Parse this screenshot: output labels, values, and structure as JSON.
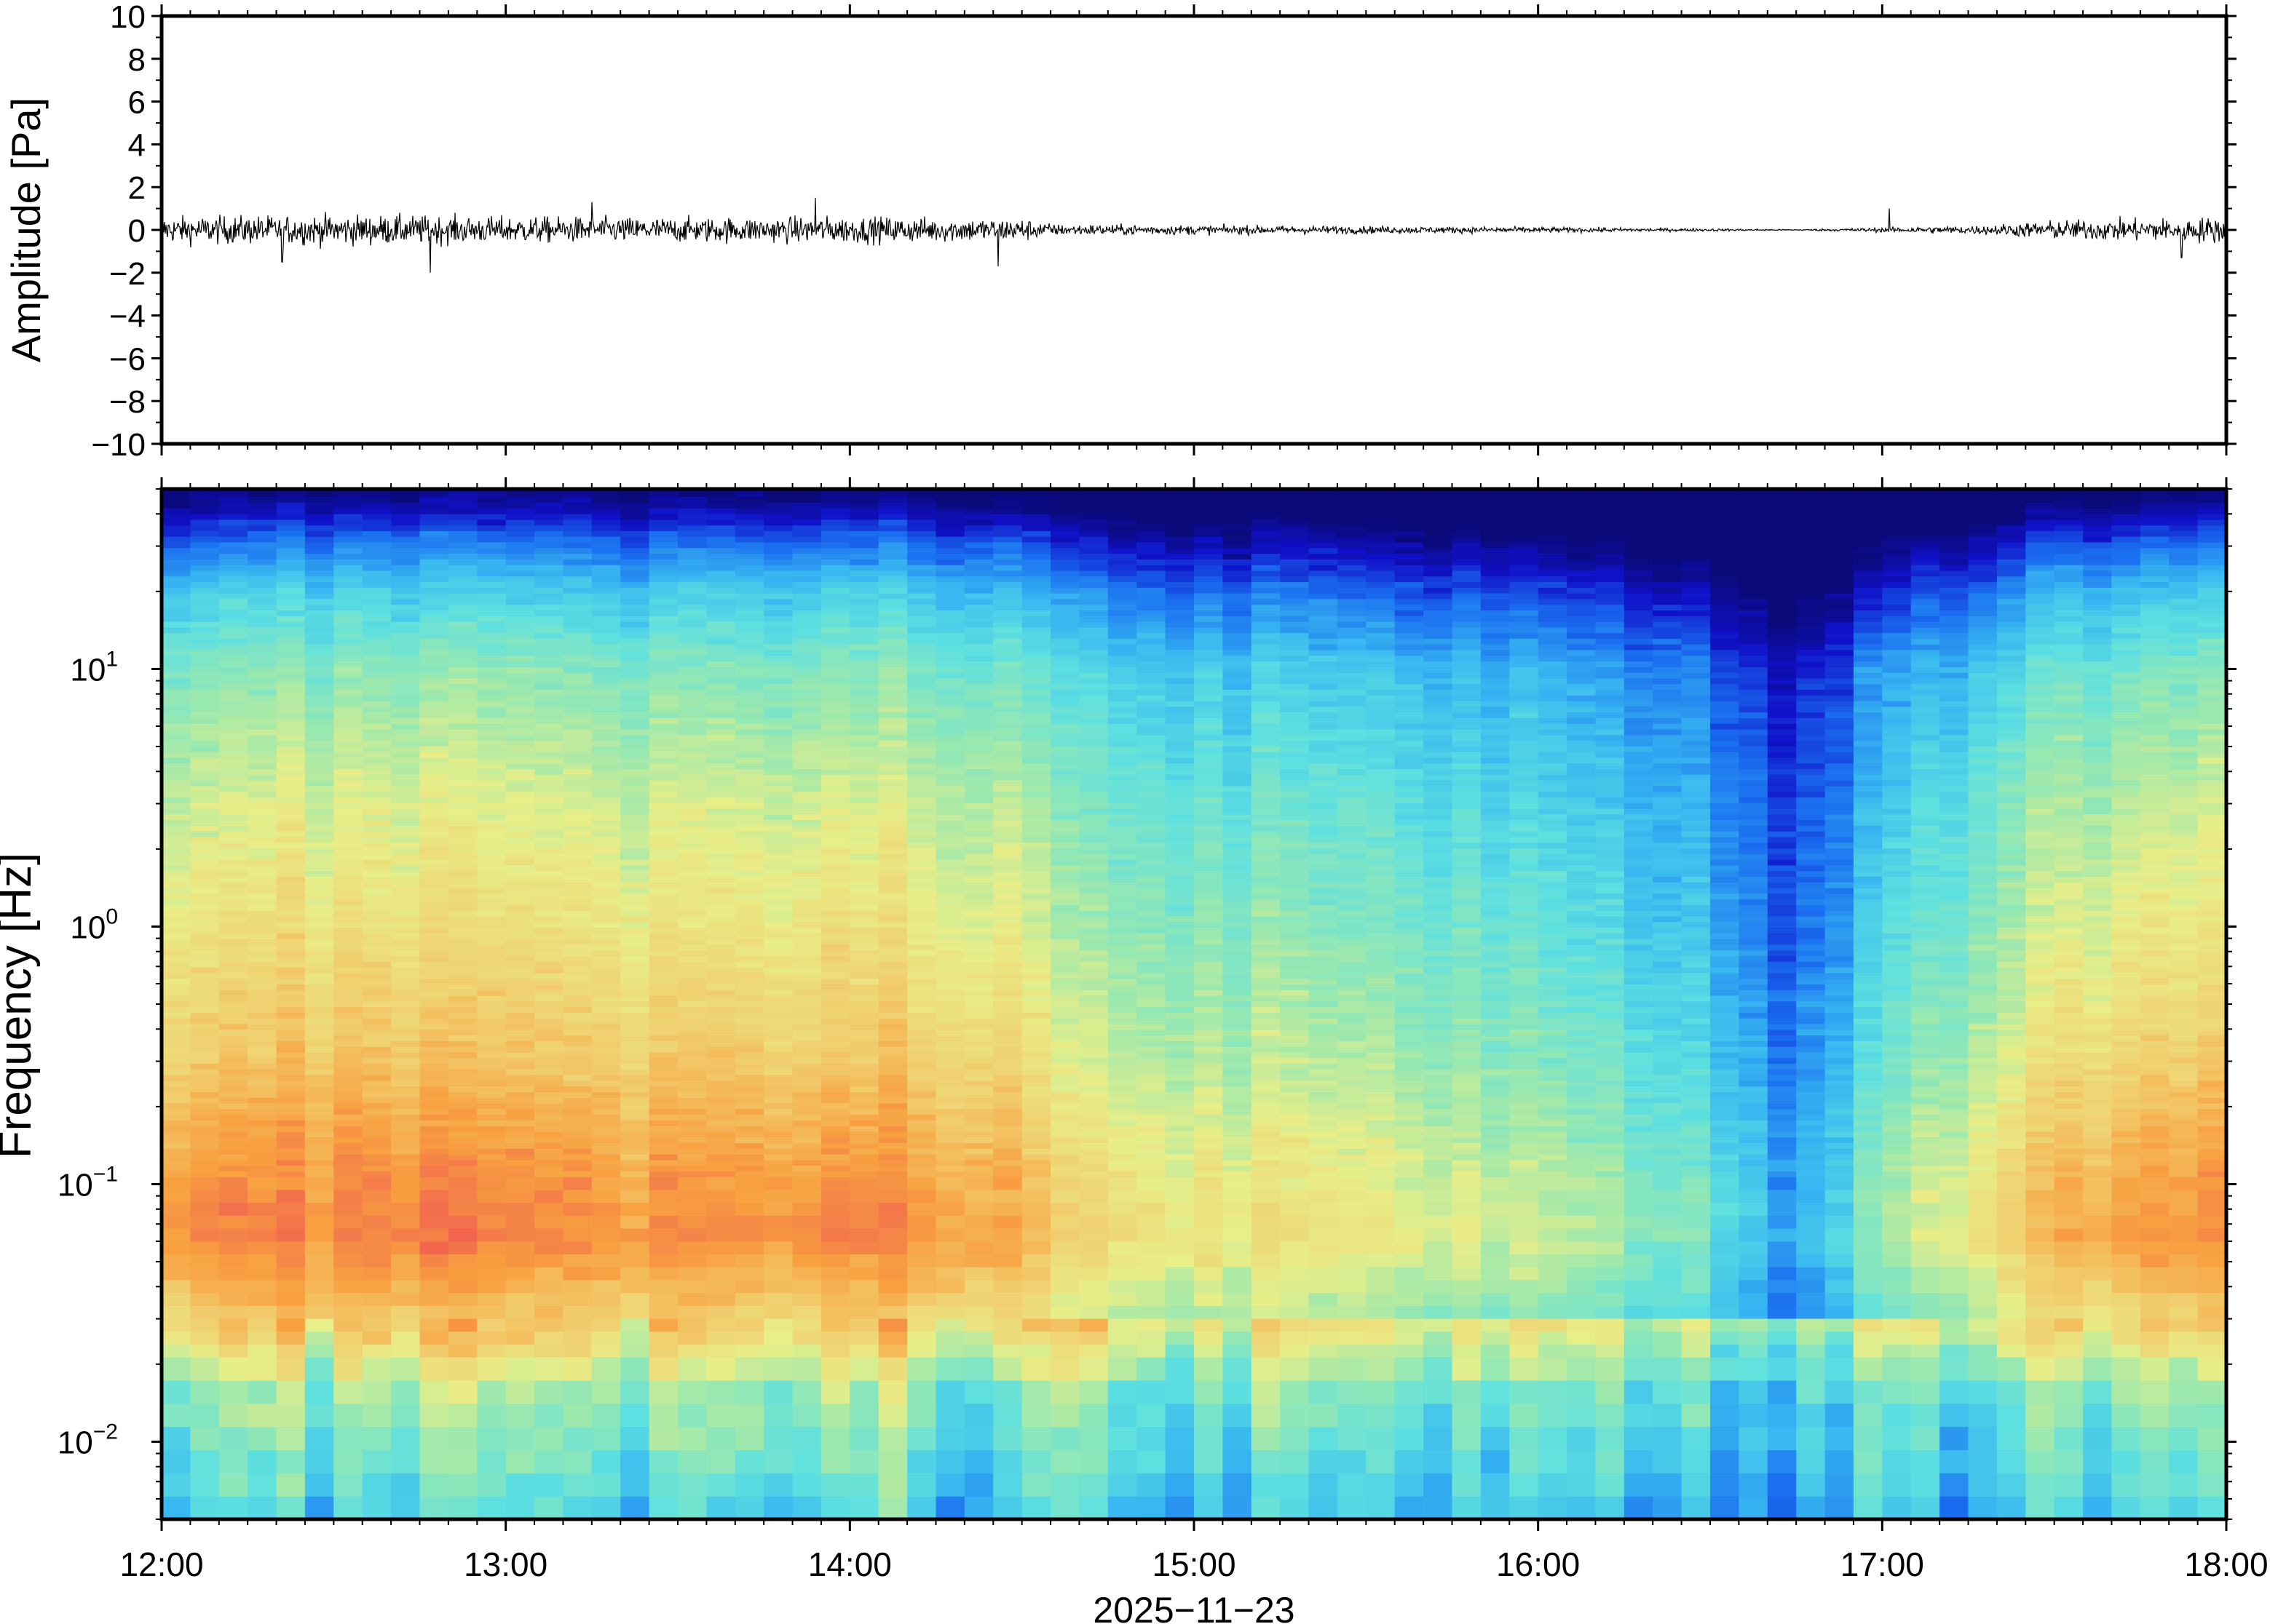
{
  "chart_data": [
    {
      "type": "line",
      "panel": "waveform",
      "ylabel": "Amplitude [Pa]",
      "ylim": [
        -10,
        10
      ],
      "yticks": [
        10,
        8,
        6,
        4,
        2,
        0,
        -2,
        -4,
        -6,
        -8,
        -10
      ],
      "ytick_labels": [
        "10",
        "8",
        "6",
        "4",
        "2",
        "0",
        "−2",
        "−4",
        "−6",
        "−8",
        "−10"
      ],
      "x_range": [
        "12:00",
        "18:00"
      ],
      "series": [
        {
          "x_hours": [
            12.0,
            12.5,
            13.0,
            13.5,
            14.0,
            14.5,
            14.6,
            15.0,
            15.5,
            16.0,
            16.5,
            16.75,
            17.0,
            17.3,
            17.5,
            17.75,
            18.0
          ],
          "envelope_pa": [
            0.7,
            0.8,
            0.7,
            0.65,
            0.7,
            0.6,
            0.3,
            0.25,
            0.2,
            0.15,
            0.07,
            0.03,
            0.12,
            0.25,
            0.5,
            0.6,
            0.7
          ],
          "spikes": [
            {
              "t": 12.78,
              "v": -2.0
            },
            {
              "t": 13.9,
              "v": 1.5
            },
            {
              "t": 14.43,
              "v": -1.7
            },
            {
              "t": 12.35,
              "v": -1.5
            },
            {
              "t": 13.25,
              "v": 1.3
            },
            {
              "t": 17.02,
              "v": 1.0
            },
            {
              "t": 17.87,
              "v": -1.3
            }
          ]
        }
      ]
    },
    {
      "type": "heatmap",
      "panel": "spectrogram",
      "ylabel": "Frequency [Hz]",
      "yscale": "log",
      "ylim_hz": [
        0.005,
        50
      ],
      "yticks": [
        {
          "value": 10,
          "base": "10",
          "exp": "1"
        },
        {
          "value": 1,
          "base": "10",
          "exp": "0"
        },
        {
          "value": 0.1,
          "base": "10",
          "exp": "−1"
        },
        {
          "value": 0.01,
          "base": "10",
          "exp": "−2"
        }
      ],
      "xlabel": "2025−11−23",
      "xticks": [
        "12:00",
        "13:00",
        "14:00",
        "15:00",
        "16:00",
        "17:00",
        "18:00"
      ],
      "colormap": "jet",
      "colormap_stops": [
        "#0a0a7a",
        "#1010c8",
        "#1a6ef0",
        "#38b8f0",
        "#5ee0e0",
        "#98e8b0",
        "#e8ee88",
        "#f0d070",
        "#f8a040",
        "#f06050"
      ],
      "level_by_hour": {
        "x_hours": [
          12.0,
          12.5,
          13.0,
          13.5,
          14.0,
          14.5,
          14.6,
          15.0,
          15.5,
          16.0,
          16.5,
          16.75,
          17.0,
          17.3,
          17.5,
          17.75,
          18.0
        ],
        "level": [
          0.92,
          0.95,
          0.93,
          0.92,
          0.93,
          0.9,
          0.74,
          0.72,
          0.7,
          0.62,
          0.5,
          0.3,
          0.56,
          0.75,
          0.85,
          0.9,
          0.92
        ]
      },
      "spectral_shape": {
        "log10_freq": [
          1.7,
          1.5,
          1.3,
          1.0,
          0.5,
          0.0,
          -0.5,
          -0.9,
          -1.2,
          -1.5,
          -1.8,
          -2.3
        ],
        "relative_level": [
          0.0,
          0.25,
          0.42,
          0.56,
          0.68,
          0.76,
          0.85,
          0.95,
          1.0,
          0.85,
          0.58,
          0.42
        ]
      }
    }
  ]
}
